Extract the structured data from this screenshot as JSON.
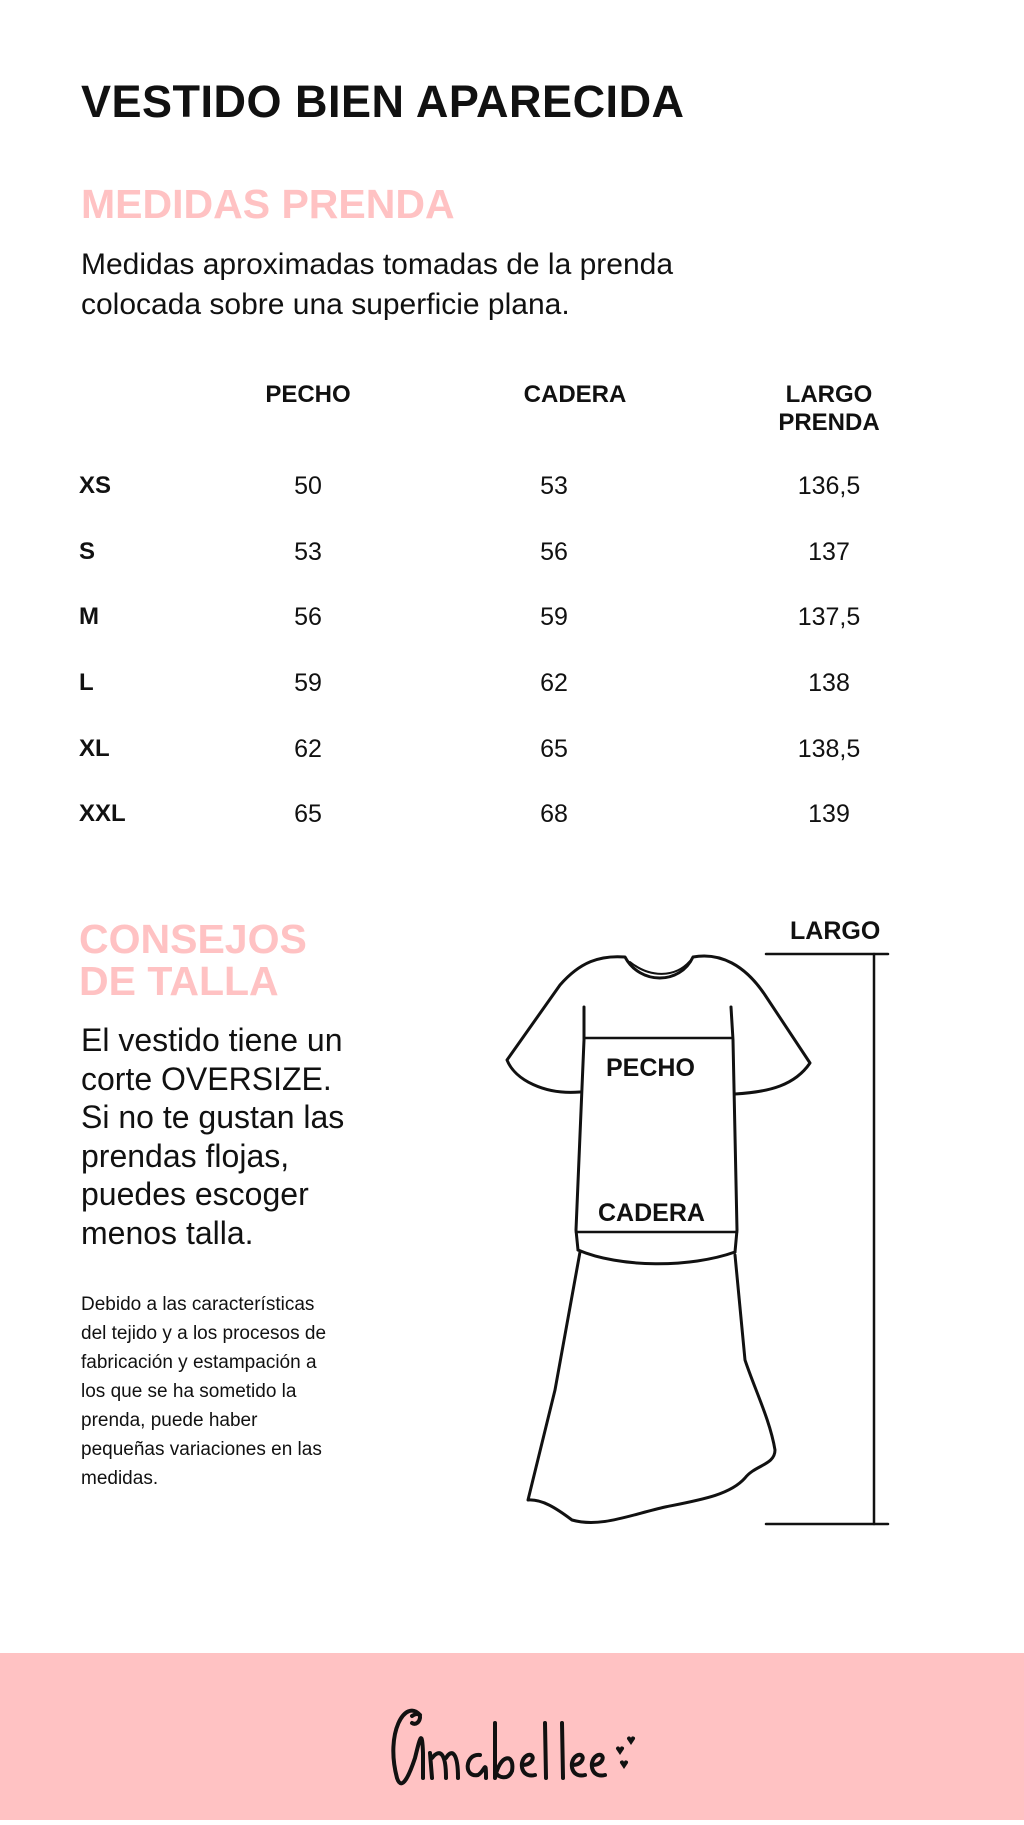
{
  "title": "VESTIDO BIEN APARECIDA",
  "measures": {
    "heading": "MEDIDAS PRENDA",
    "description_lines": [
      "Medidas aproximadas tomadas de la prenda",
      "colocada sobre una superficie plana."
    ]
  },
  "table": {
    "headers": [
      "PECHO",
      "CADERA",
      "LARGO PRENDA"
    ],
    "header_lines": {
      "largo_1": "LARGO",
      "largo_2": "PRENDA"
    },
    "rows": [
      {
        "size": "XS",
        "pecho": "50",
        "cadera": "53",
        "largo": "136,5"
      },
      {
        "size": "S",
        "pecho": "53",
        "cadera": "56",
        "largo": "137"
      },
      {
        "size": "M",
        "pecho": "56",
        "cadera": "59",
        "largo": "137,5"
      },
      {
        "size": "L",
        "pecho": "59",
        "cadera": "62",
        "largo": "138"
      },
      {
        "size": "XL",
        "pecho": "62",
        "cadera": "65",
        "largo": "138,5"
      },
      {
        "size": "XXL",
        "pecho": "65",
        "cadera": "68",
        "largo": "139"
      }
    ]
  },
  "tips": {
    "heading_lines": [
      "CONSEJOS",
      "DE TALLA"
    ],
    "text_lines": [
      "El vestido tiene un",
      "corte OVERSIZE.",
      "Si no te gustan las",
      "prendas flojas,",
      "puedes escoger",
      "menos talla."
    ],
    "note_lines": [
      "Debido a las características",
      "del tejido y a los procesos de",
      "fabricación y estampación a",
      "los que se ha sometido la",
      "prenda, puede haber",
      "pequeñas variaciones en las",
      "medidas."
    ]
  },
  "diagram": {
    "largo": "LARGO",
    "pecho": "PECHO",
    "cadera": "CADERA"
  },
  "footer": {
    "logo": "Anabel lee"
  },
  "colors": {
    "accent_pink": "#ffc2c3",
    "text": "#111111"
  }
}
